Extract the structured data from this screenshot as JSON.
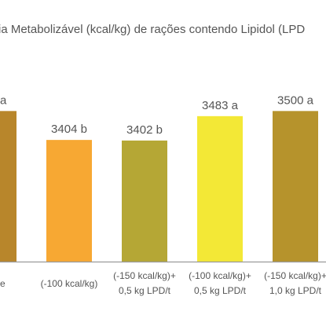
{
  "chart_data": {
    "type": "bar",
    "title": "ia Metabolizável (kcal/kg) de rações contendo Lipidol (LPD",
    "categories": [
      [
        "e"
      ],
      [
        "(-100 kcal/kg)"
      ],
      [
        "(-150 kcal/kg)+",
        "0,5 kg LPD/t"
      ],
      [
        "(-100 kcal/kg)+",
        "0,5 kg LPD/t"
      ],
      [
        "(-150 kcal/kg)+",
        "1,0 kg LPD/t"
      ]
    ],
    "values": [
      3500,
      3404,
      3402,
      3483,
      3500
    ],
    "data_labels": [
      "a",
      "3404 b",
      "3402 b",
      "3483 a",
      "3500 a"
    ],
    "colors": [
      "#b8862b",
      "#f7a833",
      "#b5a735",
      "#f3e836",
      "#b6932c"
    ],
    "axis_color": "#9a9a9a",
    "text_color": "#555555",
    "ylim": [
      3000,
      3600
    ],
    "grid": false
  }
}
